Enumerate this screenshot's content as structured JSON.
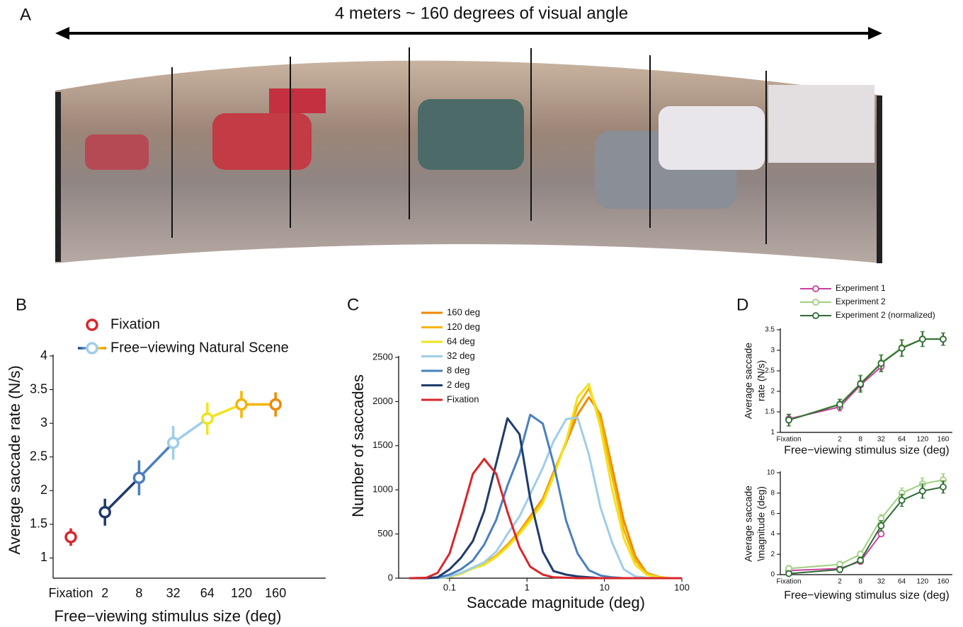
{
  "panel_a": {
    "label": "A",
    "caption": "4 meters ~ 160 degrees of visual angle"
  },
  "chart_data": [
    {
      "type": "line",
      "panel_label": "B",
      "xlabel": "Free−viewing stimulus size (deg)",
      "ylabel": "Average saccade rate (N/s)",
      "categories": [
        "Fixation",
        "2",
        "8",
        "32",
        "64",
        "120",
        "160"
      ],
      "ylim": [
        0.7,
        4
      ],
      "yticks": [
        1,
        1.5,
        2,
        2.5,
        3,
        3.5,
        4
      ],
      "markers": true,
      "series": [
        {
          "name": "Fixation",
          "color": "#d9262b",
          "values": [
            1.31,
            null,
            null,
            null,
            null,
            null,
            null
          ],
          "errors": [
            0.13,
            null,
            null,
            null,
            null,
            null,
            null
          ]
        },
        {
          "name": "Free−viewing Natural Scene",
          "colors": [
            null,
            "#1f3a6d",
            "#4a7fbf",
            "#9fcdea",
            "#f2e21c",
            "#f6b400",
            "#ef8a00"
          ],
          "values": [
            null,
            1.68,
            2.19,
            2.71,
            3.07,
            3.28,
            3.28
          ],
          "errors": [
            null,
            0.2,
            0.26,
            0.25,
            0.24,
            0.2,
            0.18
          ]
        }
      ]
    },
    {
      "type": "line",
      "panel_label": "C",
      "xlabel": "Saccade magnitude (deg)",
      "ylabel": "Number of saccades",
      "xlog": true,
      "x": [
        0.03,
        0.05,
        0.07,
        0.1,
        0.14,
        0.2,
        0.28,
        0.4,
        0.56,
        0.8,
        1.1,
        1.6,
        2.2,
        3.2,
        4.5,
        6.3,
        8.9,
        12.6,
        17.8,
        25,
        35,
        50,
        70,
        100
      ],
      "xlim": [
        0.022,
        100
      ],
      "xticks": [
        0.1,
        1,
        10,
        100
      ],
      "ylim": [
        0,
        2500
      ],
      "yticks": [
        0,
        500,
        1000,
        1500,
        2000,
        2500
      ],
      "markers": false,
      "series": [
        {
          "name": "160 deg",
          "color": "#ef8a00",
          "values": [
            0,
            0,
            0,
            15,
            55,
            115,
            165,
            255,
            380,
            530,
            700,
            900,
            1200,
            1530,
            1850,
            2050,
            1850,
            1250,
            650,
            250,
            60,
            15,
            0,
            0
          ]
        },
        {
          "name": "120 deg",
          "color": "#f6b400",
          "values": [
            0,
            0,
            0,
            15,
            50,
            110,
            160,
            250,
            370,
            520,
            680,
            880,
            1180,
            1550,
            1950,
            2150,
            1800,
            1150,
            550,
            200,
            50,
            10,
            0,
            0
          ]
        },
        {
          "name": "64 deg",
          "color": "#f2e21c",
          "values": [
            0,
            0,
            0,
            15,
            50,
            110,
            150,
            240,
            350,
            500,
            650,
            850,
            1150,
            1550,
            2050,
            2200,
            1700,
            1000,
            450,
            150,
            40,
            10,
            0,
            0
          ]
        },
        {
          "name": "32 deg",
          "color": "#9fcdea",
          "values": [
            0,
            0,
            0,
            20,
            60,
            120,
            180,
            300,
            500,
            700,
            950,
            1250,
            1550,
            1800,
            1820,
            1400,
            800,
            400,
            100,
            20,
            5,
            0,
            0,
            0
          ]
        },
        {
          "name": "8 deg",
          "color": "#4a7fbf",
          "values": [
            0,
            0,
            5,
            40,
            100,
            200,
            380,
            660,
            1050,
            1400,
            1850,
            1750,
            1300,
            650,
            280,
            90,
            30,
            10,
            0,
            0,
            0,
            0,
            0,
            0
          ]
        },
        {
          "name": "2 deg",
          "color": "#1f3a6d",
          "values": [
            0,
            0,
            10,
            100,
            230,
            420,
            760,
            1300,
            1810,
            1630,
            900,
            300,
            80,
            40,
            20,
            10,
            0,
            0,
            0,
            0,
            0,
            0,
            0,
            0
          ]
        },
        {
          "name": "Fixation",
          "color": "#d9262b",
          "values": [
            0,
            5,
            60,
            280,
            700,
            1180,
            1350,
            1180,
            750,
            350,
            130,
            40,
            10,
            5,
            0,
            0,
            0,
            0,
            0,
            0,
            0,
            0,
            0,
            0
          ]
        }
      ]
    },
    {
      "type": "line",
      "panel_label": "D",
      "xlabel": "Free−viewing stimulus size (deg)",
      "ylabel_lines": [
        "Average saccade",
        "rate (N/s)"
      ],
      "categories": [
        "Fixation",
        "2",
        "8",
        "32",
        "64",
        "120",
        "160"
      ],
      "ylim": [
        1,
        3.5
      ],
      "yticks": [
        1,
        1.5,
        2,
        2.5,
        3,
        3.5
      ],
      "markers": true,
      "series": [
        {
          "name": "Experiment 1",
          "color": "#c9409e",
          "values": [
            1.33,
            1.62,
            2.15,
            2.6,
            null,
            null,
            null
          ],
          "errors": [
            0.1,
            0.1,
            0.12,
            0.12,
            null,
            null,
            null
          ]
        },
        {
          "name": "Experiment 2",
          "color": "#9fd07f",
          "values": [
            1.3,
            1.7,
            2.2,
            2.7,
            3.07,
            3.28,
            3.28
          ],
          "errors": [
            0.15,
            0.12,
            0.2,
            0.2,
            0.2,
            0.18,
            0.15
          ]
        },
        {
          "name": "Experiment 2 (normalized)",
          "color": "#2e6b34",
          "values": [
            1.3,
            1.68,
            2.18,
            2.68,
            3.05,
            3.27,
            3.27
          ],
          "errors": [
            0.14,
            0.12,
            0.2,
            0.2,
            0.2,
            0.18,
            0.15
          ]
        }
      ]
    },
    {
      "type": "line",
      "xlabel": "Free−viewing stimulus size (deg)",
      "ylabel_lines": [
        "Average saccade",
        "\\magnitude (deg)"
      ],
      "categories": [
        "Fixation",
        "2",
        "8",
        "32",
        "64",
        "120",
        "160"
      ],
      "ylim": [
        0,
        10
      ],
      "yticks": [
        0,
        2,
        4,
        6,
        8,
        10
      ],
      "markers": true,
      "series": [
        {
          "color": "#c9409e",
          "values": [
            0.4,
            0.6,
            1.3,
            4.0,
            null,
            null,
            null
          ],
          "errors": [
            0.1,
            0.1,
            0.15,
            0.2,
            null,
            null,
            null
          ]
        },
        {
          "color": "#9fd07f",
          "values": [
            0.6,
            1.0,
            2.0,
            5.5,
            8.0,
            8.9,
            9.3
          ],
          "errors": [
            0.3,
            0.3,
            0.3,
            0.4,
            0.5,
            0.6,
            0.6
          ]
        },
        {
          "color": "#2e6b34",
          "values": [
            0.1,
            0.5,
            1.4,
            4.8,
            7.3,
            8.2,
            8.6
          ],
          "errors": [
            0.2,
            0.3,
            0.3,
            0.5,
            0.6,
            0.7,
            0.6
          ]
        }
      ]
    }
  ]
}
